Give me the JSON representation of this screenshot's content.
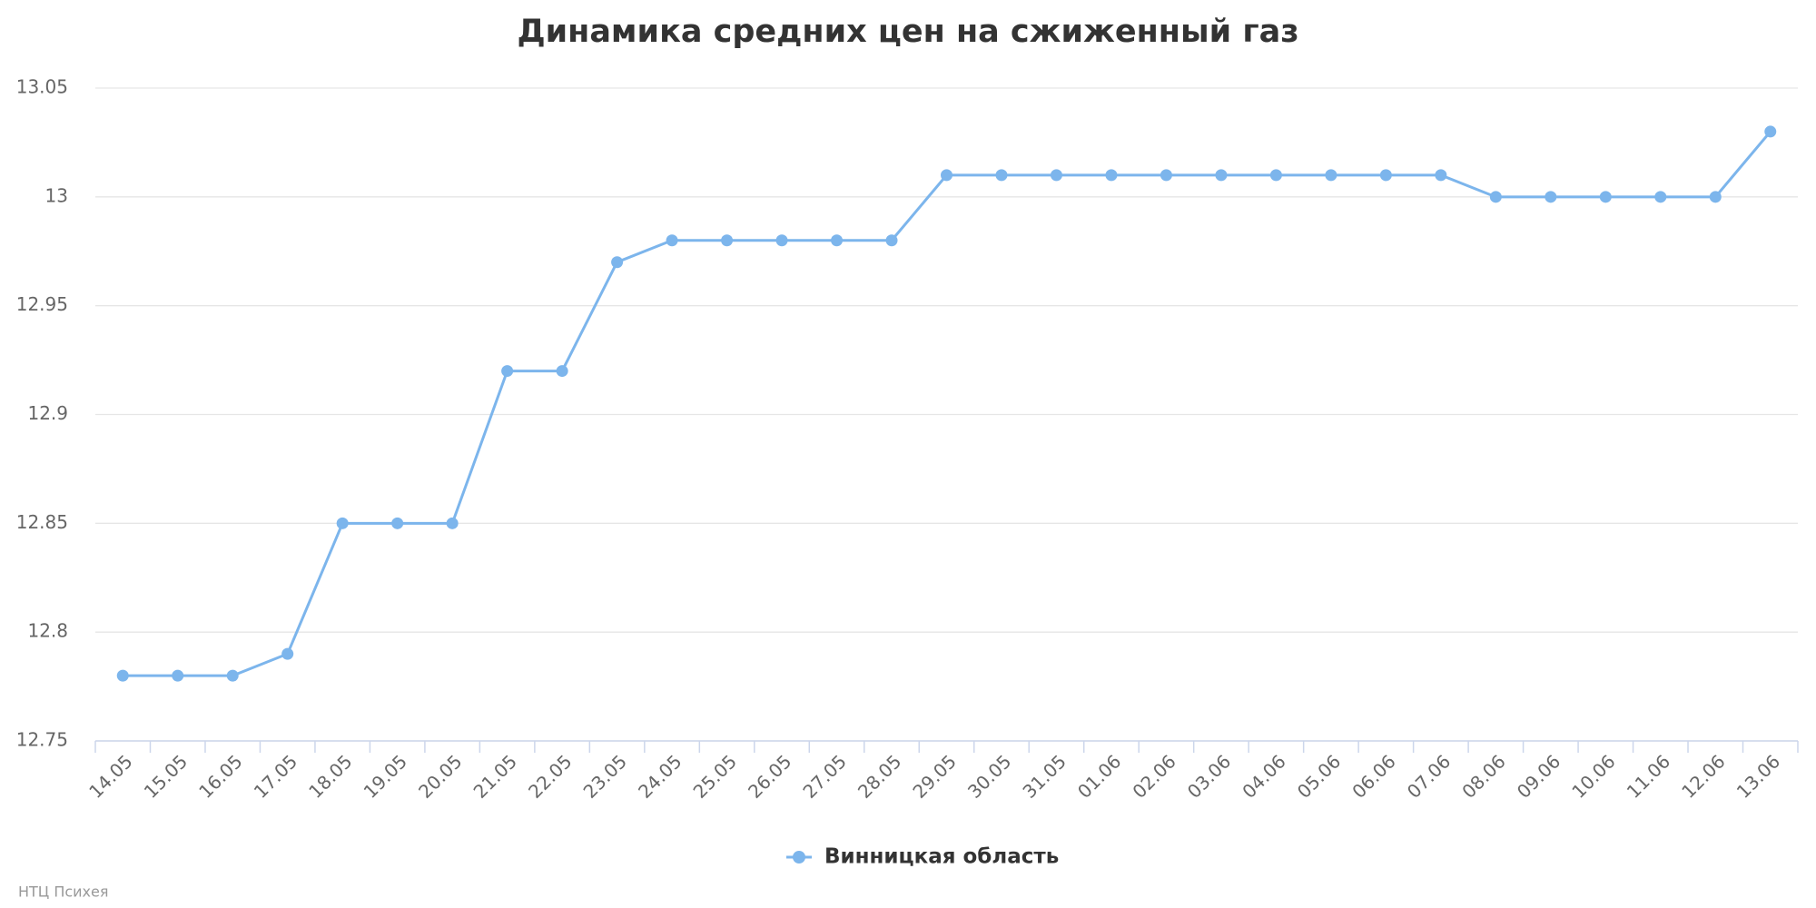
{
  "chart_data": {
    "type": "line",
    "title": "Динамика средних цен на сжиженный газ",
    "categories": [
      "14.05",
      "15.05",
      "16.05",
      "17.05",
      "18.05",
      "19.05",
      "20.05",
      "21.05",
      "22.05",
      "23.05",
      "24.05",
      "25.05",
      "26.05",
      "27.05",
      "28.05",
      "29.05",
      "30.05",
      "31.05",
      "01.06",
      "02.06",
      "03.06",
      "04.06",
      "05.06",
      "06.06",
      "07.06",
      "08.06",
      "09.06",
      "10.06",
      "11.06",
      "12.06",
      "13.06"
    ],
    "series": [
      {
        "name": "Винницкая область",
        "color": "#7cb5ec",
        "values": [
          12.78,
          12.78,
          12.78,
          12.79,
          12.85,
          12.85,
          12.85,
          12.92,
          12.92,
          12.97,
          12.98,
          12.98,
          12.98,
          12.98,
          12.98,
          13.01,
          13.01,
          13.01,
          13.01,
          13.01,
          13.01,
          13.01,
          13.01,
          13.01,
          13.01,
          13.0,
          13.0,
          13.0,
          13.0,
          13.0,
          13.03
        ]
      }
    ],
    "ylim": [
      12.75,
      13.05
    ],
    "yticks": [
      12.75,
      12.8,
      12.85,
      12.9,
      12.95,
      13,
      13.05
    ],
    "grid": true,
    "legend": "bottom",
    "credits": "НТЦ Психея"
  }
}
